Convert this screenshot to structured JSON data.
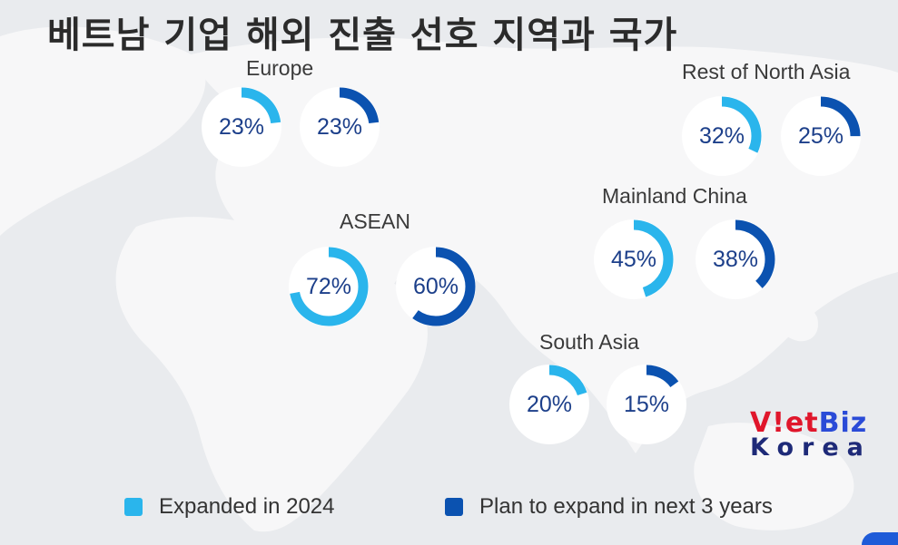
{
  "title": "베트남 기업 해외 진출 선호 지역과 국가",
  "colors": {
    "expanded": "#2ab5ec",
    "plan": "#0b52b0",
    "track": "#ffffff",
    "logo_red": "#e0162b",
    "logo_blue": "#2a4bd7"
  },
  "chart_data": {
    "type": "pie",
    "legend": [
      {
        "key": "expanded",
        "label": "Expanded in 2024"
      },
      {
        "key": "plan",
        "label": "Plan to expand in next 3 years"
      }
    ],
    "regions": [
      {
        "name": "Europe",
        "expanded": 23,
        "plan": 23,
        "expanded_label": "23%",
        "plan_label": "23%"
      },
      {
        "name": "Rest of North Asia",
        "expanded": 32,
        "plan": 25,
        "expanded_label": "32%",
        "plan_label": "25%"
      },
      {
        "name": "ASEAN",
        "expanded": 72,
        "plan": 60,
        "expanded_label": "72%",
        "plan_label": "60%"
      },
      {
        "name": "Mainland China",
        "expanded": 45,
        "plan": 38,
        "expanded_label": "45%",
        "plan_label": "38%"
      },
      {
        "name": "South Asia",
        "expanded": 20,
        "plan": 15,
        "expanded_label": "20%",
        "plan_label": "15%"
      }
    ]
  },
  "logo": {
    "viet_v": "V",
    "viet_rest": "!et",
    "biz": "Biz",
    "korea": "Korea"
  }
}
